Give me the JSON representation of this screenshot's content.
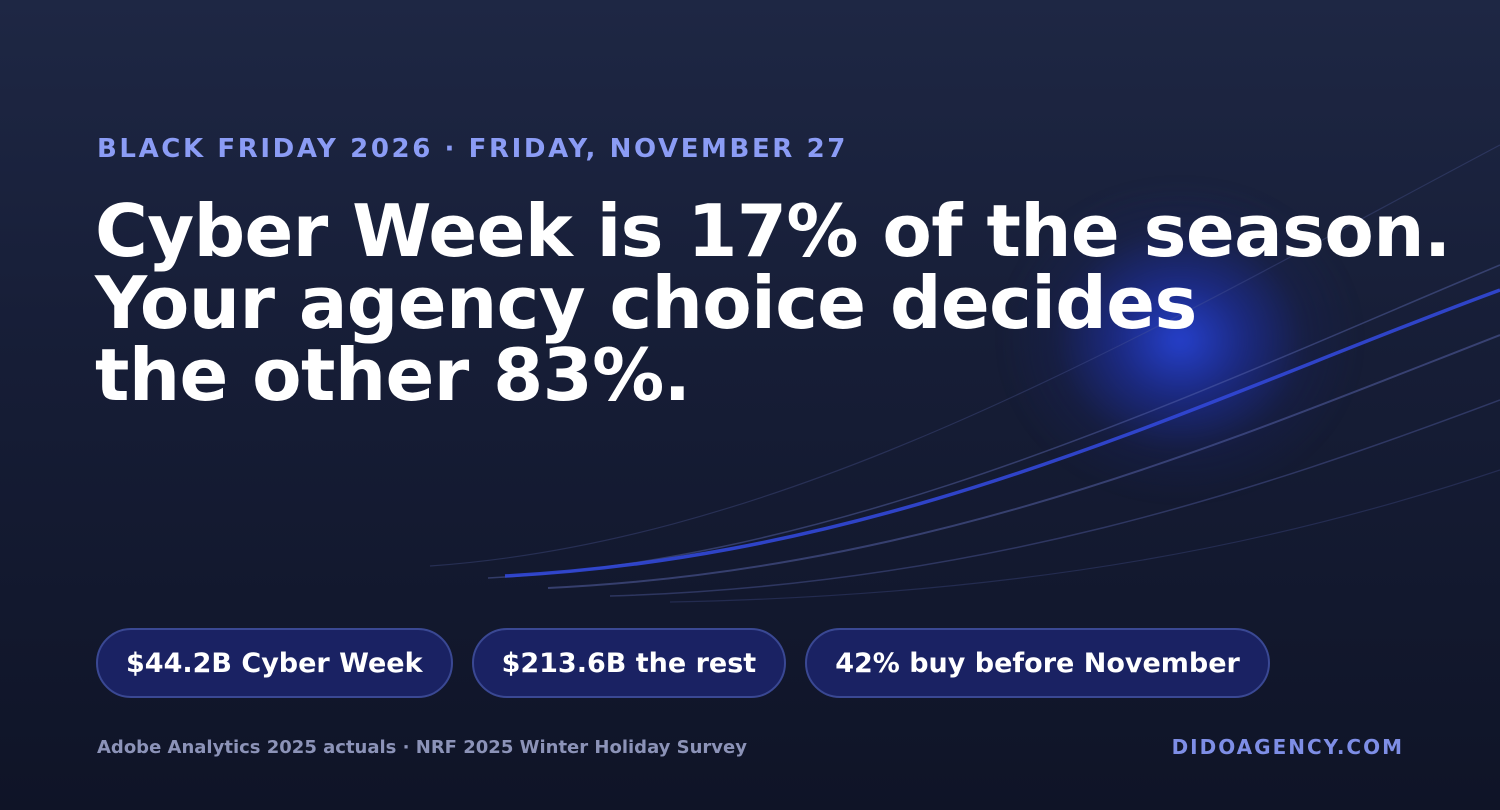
{
  "eyebrow": "BLACK FRIDAY 2026 · FRIDAY, NOVEMBER 27",
  "headline": {
    "line1": "Cyber Week is 17% of the season.",
    "line2": "Your agency choice decides",
    "line3": "the other 83%."
  },
  "pills": [
    "$44.2B Cyber Week",
    "$213.6B the rest",
    "42% buy before November"
  ],
  "footer": {
    "source": "Adobe Analytics 2025 actuals · NRF 2025 Winter Holiday Survey",
    "site": "DIDOAGENCY.COM"
  },
  "colors": {
    "background": "#1a2140",
    "accent": "#8b9cf5",
    "pill_fill": "#1a2263",
    "pill_border": "#3a4893",
    "glow": "#2846e6"
  }
}
